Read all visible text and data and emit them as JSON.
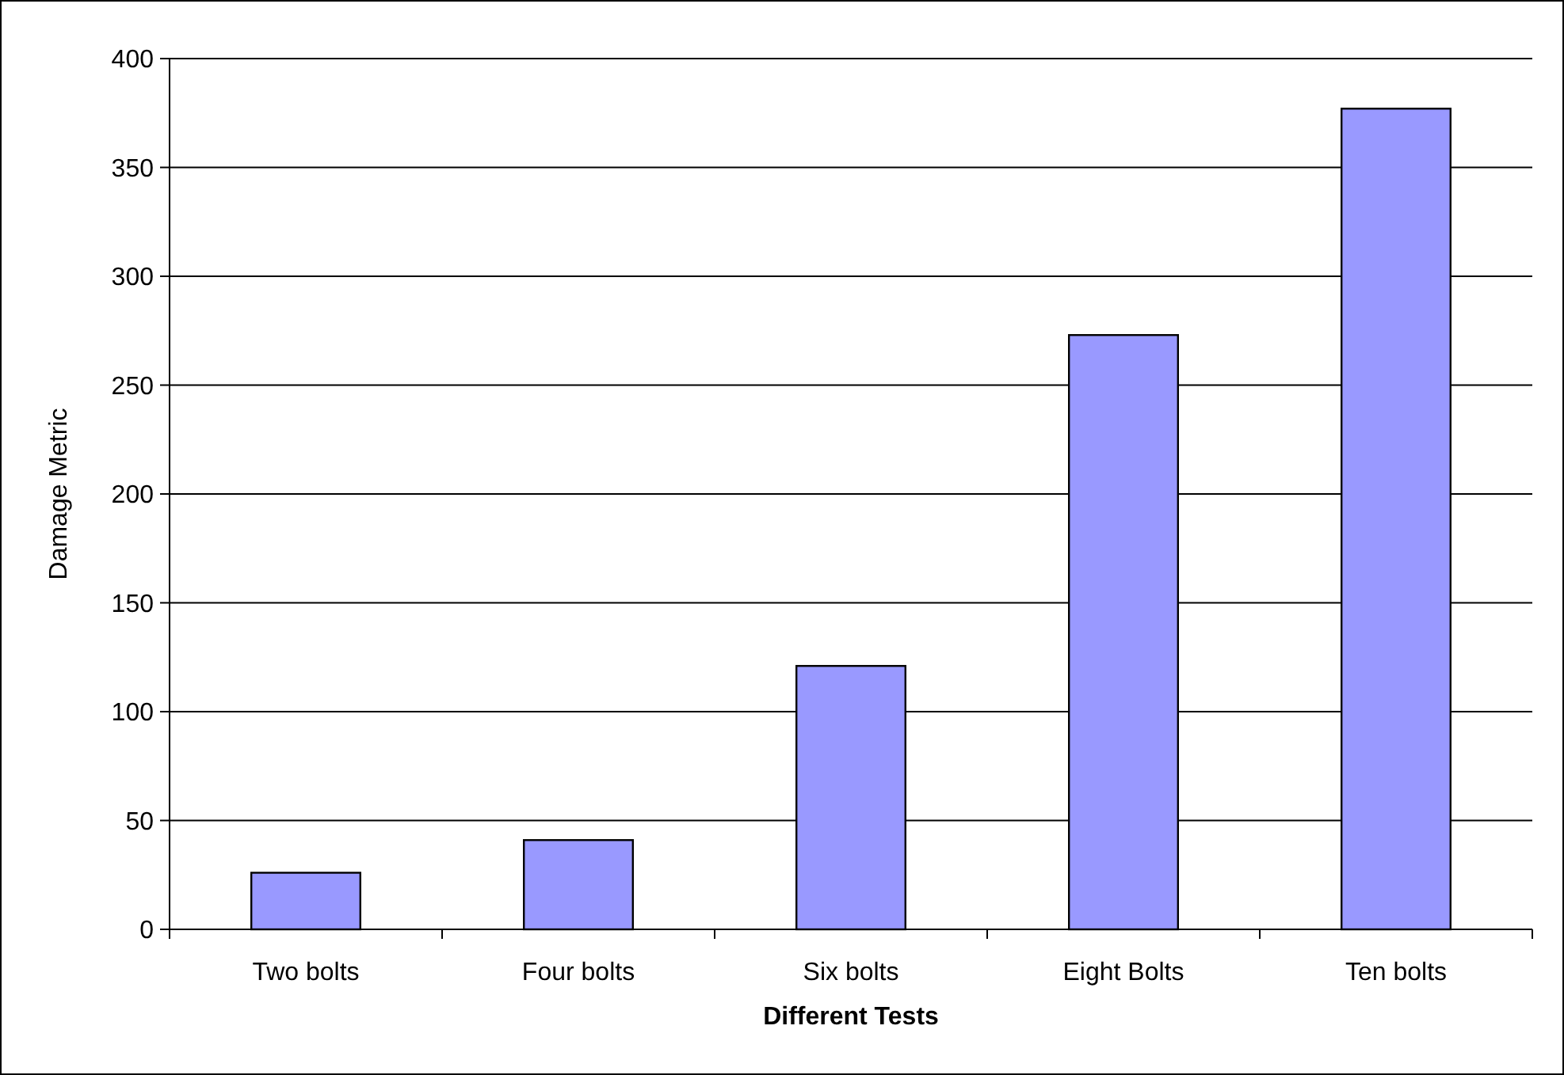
{
  "chart_data": {
    "type": "bar",
    "xlabel": "Different Tests",
    "ylabel": "Damage Metric",
    "categories": [
      "Two bolts",
      "Four bolts",
      "Six bolts",
      "Eight Bolts",
      "Ten bolts"
    ],
    "values": [
      26,
      41,
      121,
      273,
      377
    ],
    "color": "#9999ff",
    "ylim": [
      0,
      400
    ],
    "yticks": [
      0,
      50,
      100,
      150,
      200,
      250,
      300,
      350,
      400
    ],
    "grid": "y"
  }
}
